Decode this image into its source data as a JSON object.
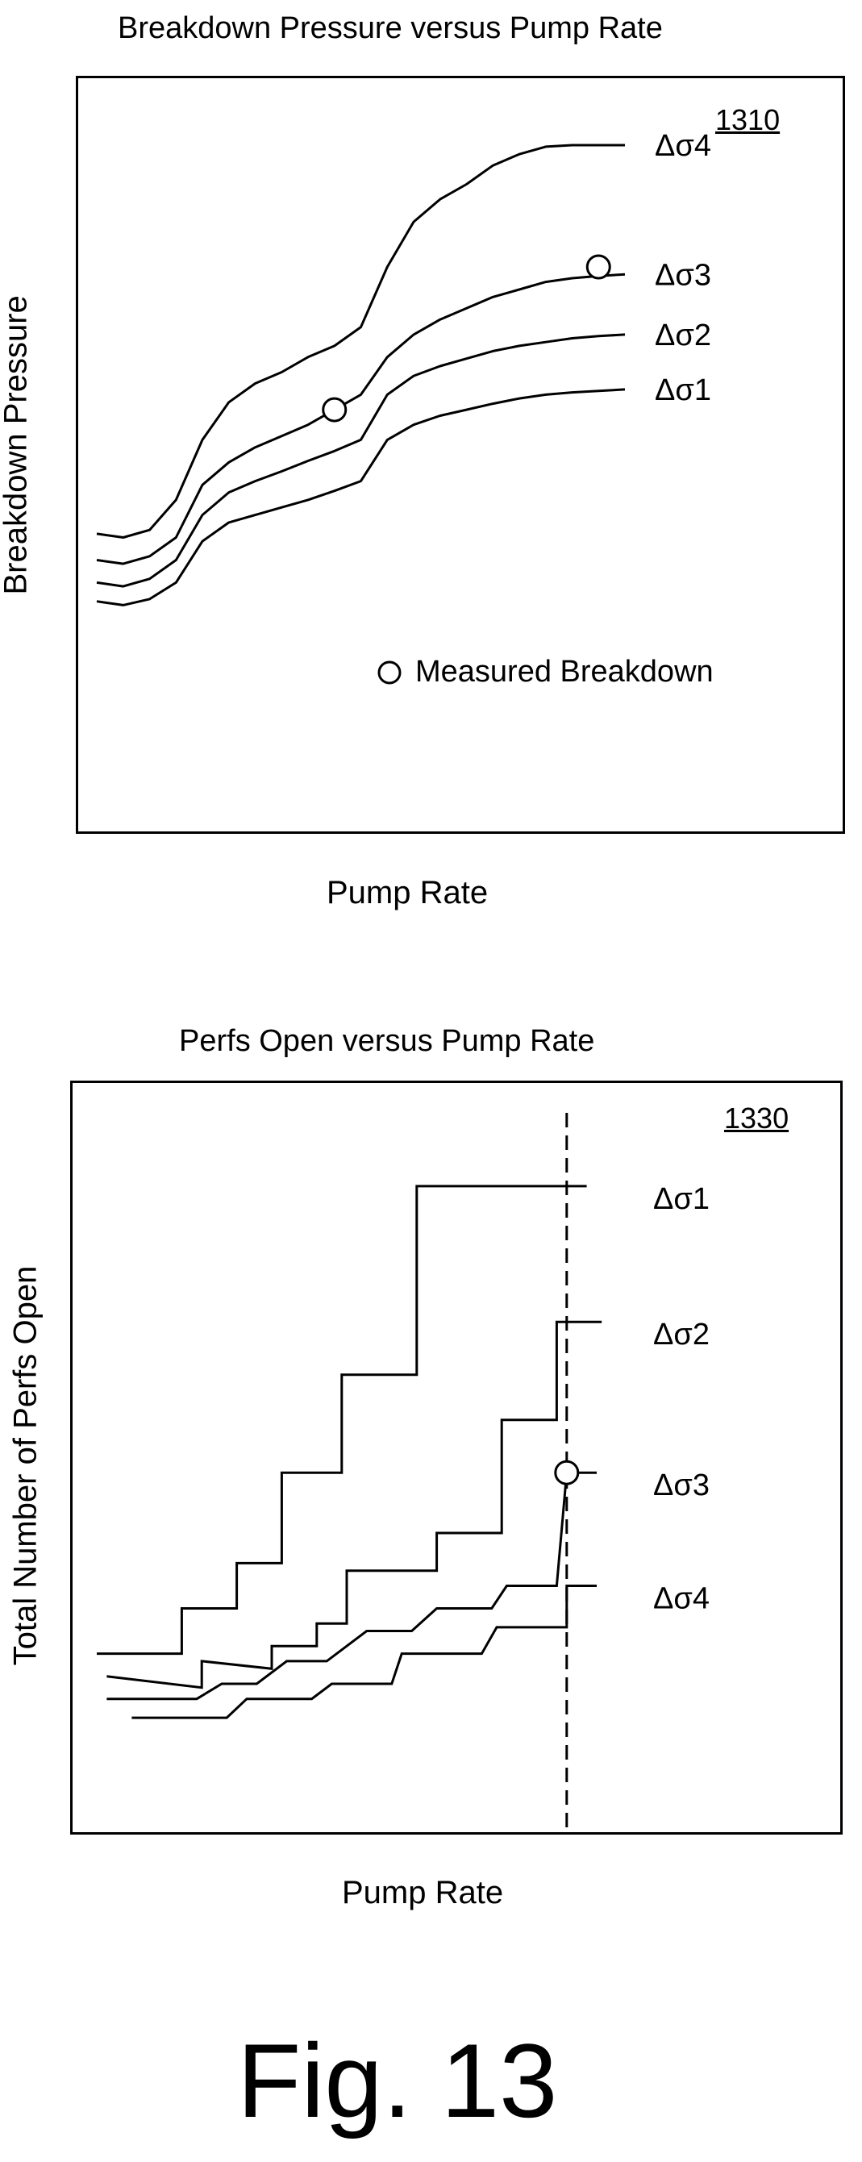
{
  "figure_label": "Fig. 13",
  "chart_data": [
    {
      "type": "line",
      "title": "Breakdown Pressure versus Pump Rate",
      "xlabel": "Pump Rate",
      "ylabel": "Breakdown Pressure",
      "ref": "1310",
      "x": [
        0,
        0.05,
        0.1,
        0.15,
        0.2,
        0.25,
        0.3,
        0.35,
        0.4,
        0.45,
        0.5,
        0.55,
        0.6,
        0.65,
        0.7,
        0.75,
        0.8,
        0.85,
        0.9,
        0.95,
        1.0
      ],
      "series": [
        {
          "name": "Δσ4",
          "values": [
            0.395,
            0.39,
            0.4,
            0.44,
            0.52,
            0.57,
            0.595,
            0.61,
            0.63,
            0.645,
            0.67,
            0.75,
            0.81,
            0.84,
            0.86,
            0.885,
            0.9,
            0.91,
            0.912,
            0.912,
            0.912
          ]
        },
        {
          "name": "Δσ3",
          "values": [
            0.36,
            0.355,
            0.365,
            0.39,
            0.46,
            0.49,
            0.51,
            0.525,
            0.54,
            0.56,
            0.58,
            0.63,
            0.66,
            0.68,
            0.695,
            0.71,
            0.72,
            0.73,
            0.735,
            0.738,
            0.74
          ]
        },
        {
          "name": "Δσ2",
          "values": [
            0.33,
            0.325,
            0.335,
            0.36,
            0.42,
            0.45,
            0.465,
            0.478,
            0.492,
            0.505,
            0.52,
            0.58,
            0.605,
            0.618,
            0.628,
            0.638,
            0.645,
            0.65,
            0.655,
            0.658,
            0.66
          ]
        },
        {
          "name": "Δσ1",
          "values": [
            0.305,
            0.3,
            0.308,
            0.33,
            0.385,
            0.41,
            0.42,
            0.43,
            0.44,
            0.452,
            0.465,
            0.52,
            0.54,
            0.552,
            0.56,
            0.568,
            0.575,
            0.58,
            0.583,
            0.585,
            0.587
          ]
        }
      ],
      "measured_points": [
        {
          "x": 0.45,
          "y": 0.56
        },
        {
          "x": 0.95,
          "y": 0.75
        }
      ],
      "legend": {
        "marker": "circle",
        "label": "Measured Breakdown",
        "placement": "lower-right"
      },
      "xlim": [
        0,
        1
      ],
      "ylim": [
        0,
        1
      ],
      "grid": false
    },
    {
      "type": "line",
      "title": "Perfs Open versus Pump Rate",
      "xlabel": "Pump Rate",
      "ylabel": "Total Number of Perfs Open",
      "ref": "1330",
      "series": [
        {
          "name": "Δσ1",
          "steps": [
            [
              0,
              0.24
            ],
            [
              0.17,
              0.24
            ],
            [
              0.17,
              0.3
            ],
            [
              0.28,
              0.3
            ],
            [
              0.28,
              0.36
            ],
            [
              0.37,
              0.36
            ],
            [
              0.37,
              0.48
            ],
            [
              0.49,
              0.48
            ],
            [
              0.49,
              0.61
            ],
            [
              0.64,
              0.61
            ],
            [
              0.64,
              0.86
            ],
            [
              0.98,
              0.86
            ]
          ]
        },
        {
          "name": "Δσ2",
          "steps": [
            [
              0.02,
              0.21
            ],
            [
              0.21,
              0.195
            ],
            [
              0.21,
              0.23
            ],
            [
              0.35,
              0.22
            ],
            [
              0.35,
              0.25
            ],
            [
              0.44,
              0.25
            ],
            [
              0.44,
              0.28
            ],
            [
              0.5,
              0.28
            ],
            [
              0.5,
              0.35
            ],
            [
              0.68,
              0.35
            ],
            [
              0.68,
              0.4
            ],
            [
              0.81,
              0.4
            ],
            [
              0.81,
              0.55
            ],
            [
              0.92,
              0.55
            ],
            [
              0.92,
              0.68
            ],
            [
              1.01,
              0.68
            ]
          ]
        },
        {
          "name": "Δσ3",
          "steps": [
            [
              0.02,
              0.18
            ],
            [
              0.2,
              0.18
            ],
            [
              0.25,
              0.2
            ],
            [
              0.32,
              0.2
            ],
            [
              0.38,
              0.23
            ],
            [
              0.46,
              0.23
            ],
            [
              0.54,
              0.27
            ],
            [
              0.63,
              0.27
            ],
            [
              0.68,
              0.3
            ],
            [
              0.79,
              0.3
            ],
            [
              0.82,
              0.33
            ],
            [
              0.92,
              0.33
            ],
            [
              0.94,
              0.48
            ],
            [
              0.95,
              0.48
            ],
            [
              1.0,
              0.48
            ]
          ]
        },
        {
          "name": "Δσ4",
          "steps": [
            [
              0.07,
              0.155
            ],
            [
              0.26,
              0.155
            ],
            [
              0.3,
              0.18
            ],
            [
              0.43,
              0.18
            ],
            [
              0.47,
              0.2
            ],
            [
              0.59,
              0.2
            ],
            [
              0.61,
              0.24
            ],
            [
              0.77,
              0.24
            ],
            [
              0.8,
              0.275
            ],
            [
              0.94,
              0.275
            ],
            [
              0.94,
              0.33
            ],
            [
              1.0,
              0.33
            ]
          ]
        }
      ],
      "measured_points": [
        {
          "x": 0.94,
          "y": 0.48
        }
      ],
      "vline_x": 0.94,
      "xlim": [
        0,
        1
      ],
      "ylim": [
        0,
        1
      ],
      "grid": false
    }
  ]
}
